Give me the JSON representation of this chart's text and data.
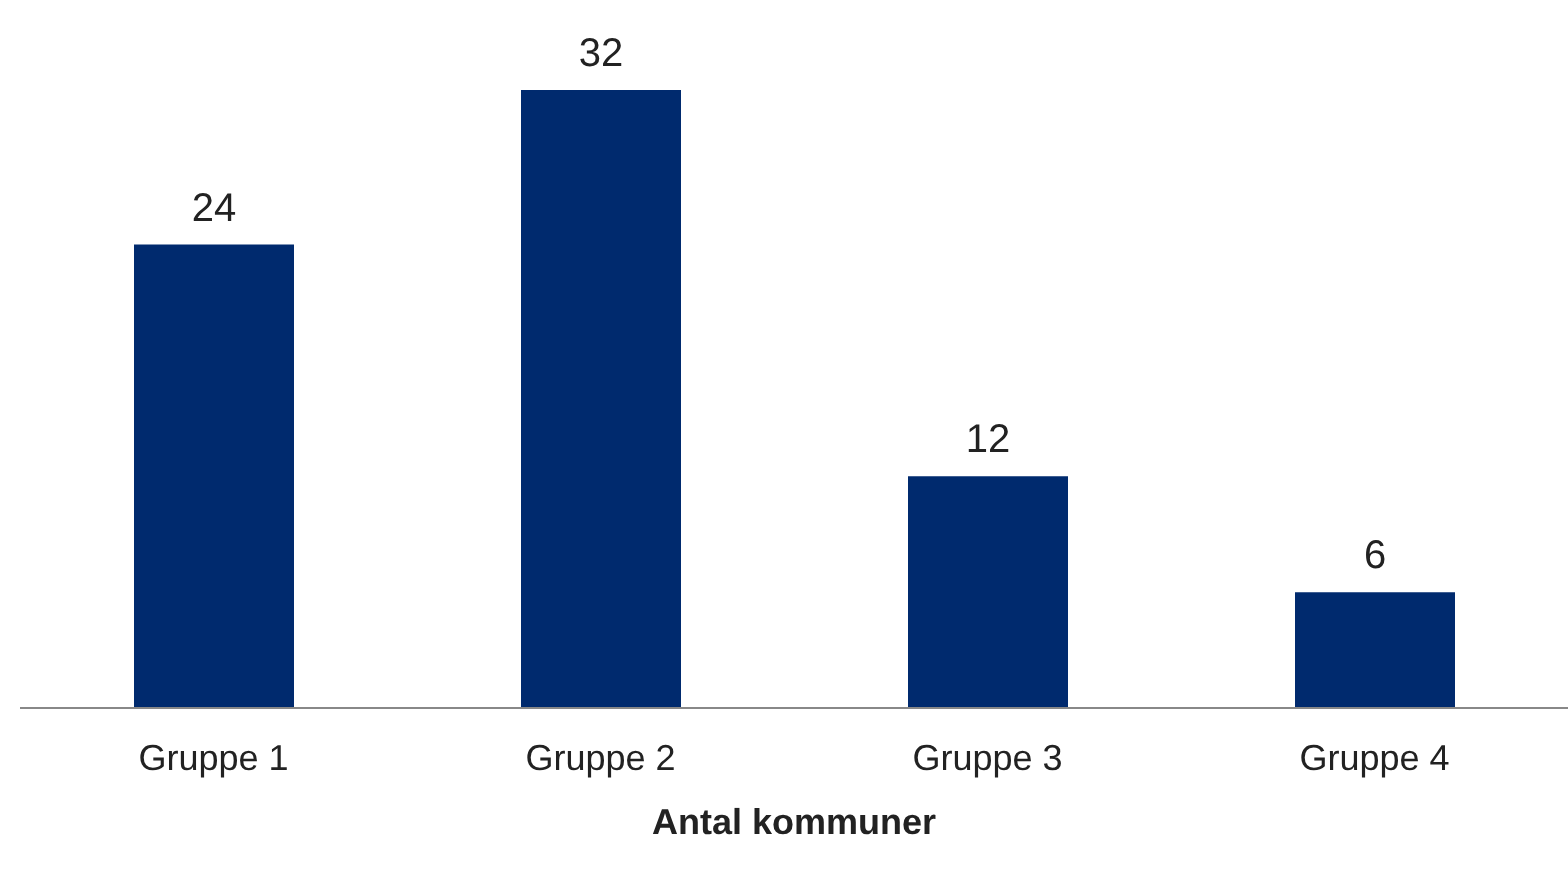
{
  "chart_data": {
    "type": "bar",
    "xlabel": "Antal kommuner",
    "categories": [
      "Gruppe 1",
      "Gruppe 2",
      "Gruppe 3",
      "Gruppe 4"
    ],
    "values": [
      24,
      32,
      12,
      6
    ],
    "color": "#002a6e",
    "data_labels": true
  }
}
